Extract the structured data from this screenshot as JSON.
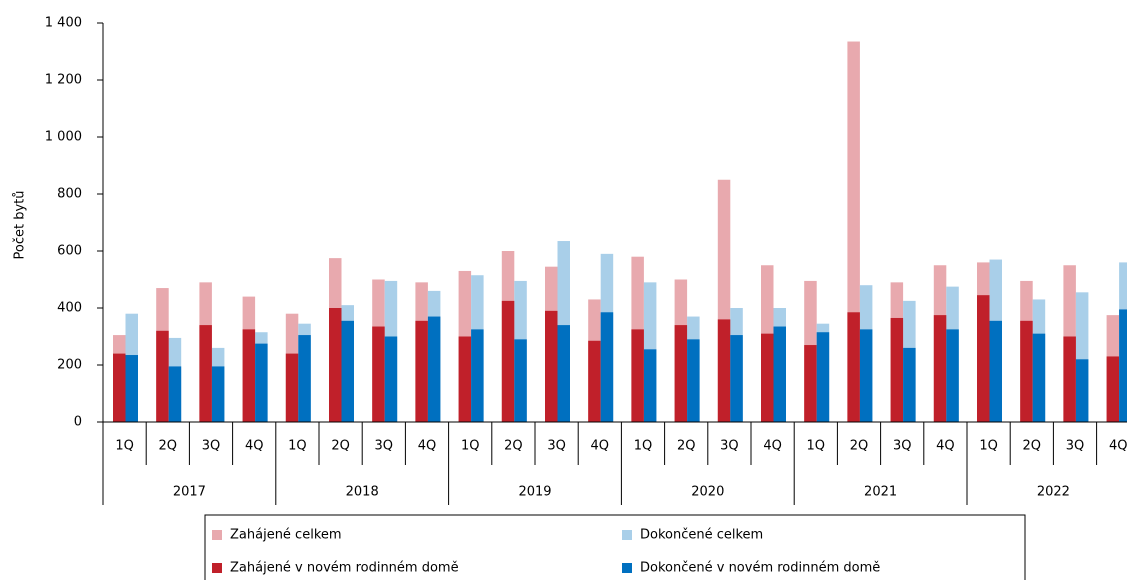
{
  "chart_data": {
    "type": "bar",
    "y_label": "Počet bytů",
    "categories": [
      "1Q",
      "2Q",
      "3Q",
      "4Q",
      "1Q",
      "2Q",
      "3Q",
      "4Q",
      "1Q",
      "2Q",
      "3Q",
      "4Q",
      "1Q",
      "2Q",
      "3Q",
      "4Q",
      "1Q",
      "2Q",
      "3Q",
      "4Q",
      "1Q",
      "2Q",
      "3Q",
      "4Q"
    ],
    "years": [
      "2017",
      "2018",
      "2019",
      "2020",
      "2021",
      "2022"
    ],
    "series": [
      {
        "name": "Zahájené celkem",
        "color": "#e8a9ae",
        "values": [
          305,
          470,
          490,
          440,
          380,
          575,
          500,
          490,
          530,
          600,
          545,
          430,
          580,
          500,
          850,
          550,
          495,
          1335,
          490,
          550,
          560,
          495,
          550,
          375
        ]
      },
      {
        "name": "Dokončené celkem",
        "color": "#a9cfe9",
        "values": [
          380,
          295,
          260,
          315,
          345,
          410,
          495,
          460,
          515,
          495,
          635,
          590,
          490,
          370,
          400,
          400,
          345,
          480,
          425,
          475,
          570,
          430,
          455,
          560
        ]
      },
      {
        "name": "Zahájené v novém rodinném domě",
        "color": "#c0202a",
        "values": [
          240,
          320,
          340,
          325,
          240,
          400,
          335,
          355,
          300,
          425,
          390,
          285,
          325,
          340,
          360,
          310,
          270,
          385,
          365,
          375,
          445,
          355,
          300,
          230
        ]
      },
      {
        "name": "Dokončené v novém rodinném domě",
        "color": "#0070c0",
        "values": [
          235,
          195,
          195,
          275,
          305,
          355,
          300,
          370,
          325,
          290,
          340,
          385,
          255,
          290,
          305,
          335,
          315,
          325,
          260,
          325,
          355,
          310,
          220,
          395
        ]
      }
    ],
    "ylim": [
      0,
      1400
    ],
    "yticks": [
      0,
      200,
      400,
      600,
      800,
      {
        "value": 1000,
        "label": "1 000"
      },
      {
        "value": 1200,
        "label": "1 200"
      },
      {
        "value": 1400,
        "label": "1 400"
      }
    ]
  }
}
